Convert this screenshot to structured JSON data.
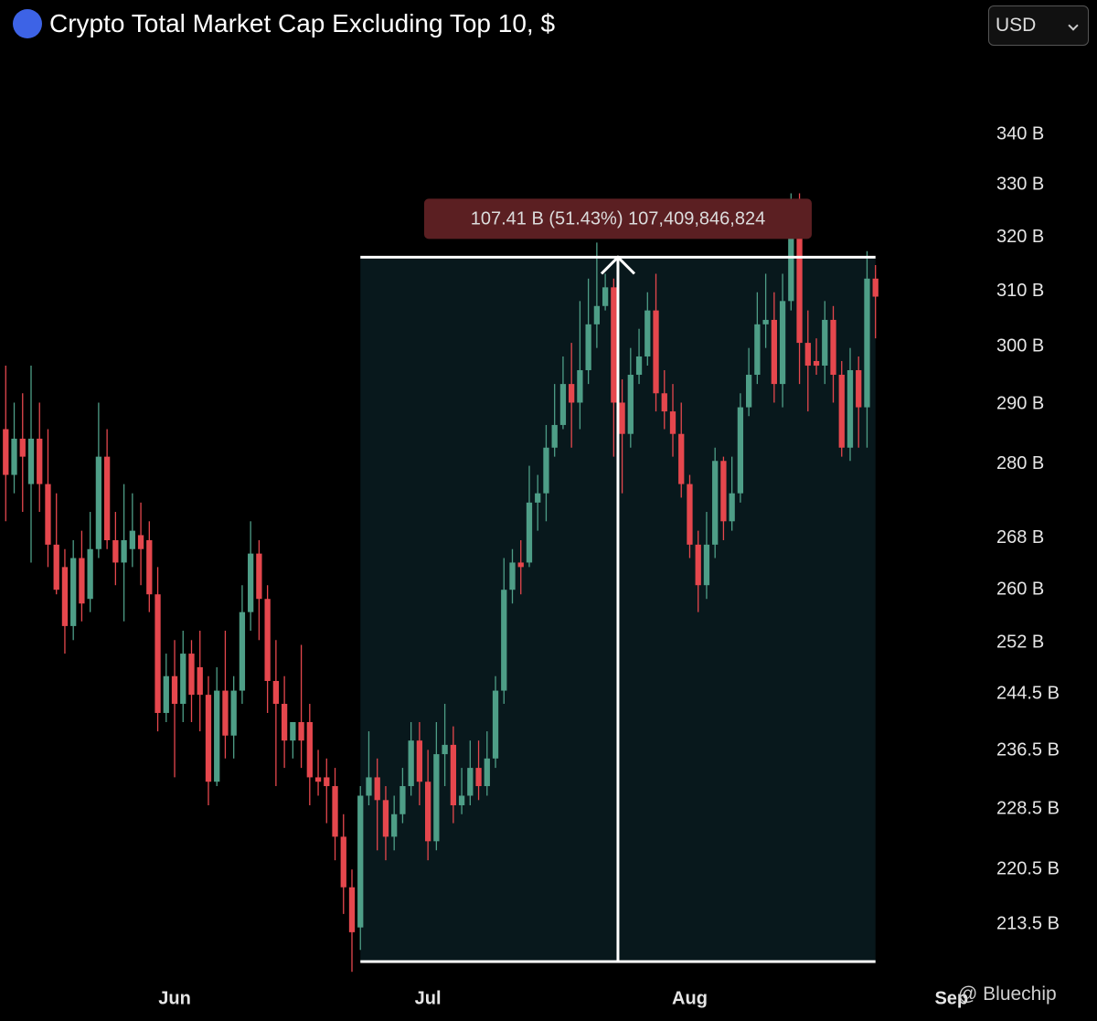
{
  "chart_data": {
    "type": "candlestick",
    "title": "Crypto Total Market Cap Excluding Top 10, $",
    "currency": "USD",
    "watermark": "@ Bluechip",
    "up_color": "#4e9e87",
    "down_color": "#e5474d",
    "log_scale": true,
    "ylim": [
      207.4,
      356.3
    ],
    "yticks": [
      {
        "value": 340,
        "label": "340 B"
      },
      {
        "value": 330,
        "label": "330 B"
      },
      {
        "value": 320,
        "label": "320 B"
      },
      {
        "value": 310,
        "label": "310 B"
      },
      {
        "value": 300,
        "label": "300 B"
      },
      {
        "value": 290,
        "label": "290 B"
      },
      {
        "value": 280,
        "label": "280 B"
      },
      {
        "value": 268,
        "label": "268 B"
      },
      {
        "value": 260,
        "label": "260 B"
      },
      {
        "value": 252,
        "label": "252 B"
      },
      {
        "value": 244.5,
        "label": "244.5 B"
      },
      {
        "value": 236.5,
        "label": "236.5 B"
      },
      {
        "value": 228.5,
        "label": "228.5 B"
      },
      {
        "value": 220.5,
        "label": "220.5 B"
      },
      {
        "value": 213.5,
        "label": "213.5 B"
      }
    ],
    "xlim": [
      -0.68,
      115.7
    ],
    "xticks": [
      {
        "value": 20,
        "label": "Jun"
      },
      {
        "value": 50,
        "label": "Jul"
      },
      {
        "value": 81,
        "label": "Aug"
      },
      {
        "value": 112,
        "label": "Sep"
      }
    ],
    "measure": {
      "start": 42,
      "end": 103,
      "low": 208.85,
      "high": 316.26,
      "label": "107.41 B (51.43%) 107,409,846,824"
    },
    "candles": [
      [
        285.8,
        296.7,
        270.7,
        278.2
      ],
      [
        278.2,
        290.3,
        275.2,
        284.2
      ],
      [
        284.2,
        291.9,
        272.2,
        281.2
      ],
      [
        276.7,
        296.7,
        264.2,
        284.2
      ],
      [
        284.2,
        290.3,
        272.2,
        276.7
      ],
      [
        276.7,
        285.8,
        263.5,
        267
      ],
      [
        267,
        275.2,
        259.3,
        260
      ],
      [
        263.5,
        266.3,
        250.4,
        254.5
      ],
      [
        254.5,
        267.7,
        252.4,
        264.9
      ],
      [
        264.9,
        269.2,
        255.2,
        257.9
      ],
      [
        258.6,
        272.2,
        256.6,
        266.3
      ],
      [
        266.3,
        290.3,
        264.9,
        281.2
      ],
      [
        281.2,
        285.8,
        266.3,
        267.7
      ],
      [
        267.7,
        272.2,
        260.7,
        264.2
      ],
      [
        264.2,
        276.7,
        255.2,
        267.7
      ],
      [
        266.3,
        275.2,
        263.5,
        269.2
      ],
      [
        268.5,
        273.7,
        260.7,
        266.3
      ],
      [
        267.7,
        270.7,
        256.6,
        259.3
      ],
      [
        259.3,
        263.5,
        239.2,
        241.8
      ],
      [
        241.8,
        250.4,
        240.5,
        247.1
      ],
      [
        247.1,
        252.4,
        232.8,
        243.1
      ],
      [
        243.1,
        253.8,
        240.5,
        250.4
      ],
      [
        250.4,
        252.4,
        240.5,
        244.4
      ],
      [
        248.4,
        253.8,
        239.2,
        244.4
      ],
      [
        244.4,
        247.1,
        229,
        232.2
      ],
      [
        232.2,
        248.4,
        231.6,
        245
      ],
      [
        245,
        253.8,
        235.4,
        238.6
      ],
      [
        238.6,
        247.1,
        235.4,
        245
      ],
      [
        245,
        260.7,
        243.1,
        256.6
      ],
      [
        256.6,
        270.7,
        253.8,
        265.6
      ],
      [
        265.6,
        267.7,
        252.4,
        258.6
      ],
      [
        258.6,
        260.7,
        241.8,
        246.4
      ],
      [
        246.4,
        252.4,
        231.6,
        243.1
      ],
      [
        243.1,
        247.1,
        234.1,
        237.9
      ],
      [
        237.9,
        240.5,
        235.4,
        240.5
      ],
      [
        240.5,
        251.7,
        234.1,
        237.9
      ],
      [
        240.5,
        243.1,
        229,
        232.8
      ],
      [
        232.8,
        236.6,
        230.3,
        232.2
      ],
      [
        232.8,
        235.4,
        226.6,
        231.6
      ],
      [
        231.6,
        234.1,
        221.7,
        224.8
      ],
      [
        224.8,
        227.8,
        214.8,
        218.2
      ],
      [
        218.2,
        220.5,
        207.6,
        212.5
      ],
      [
        213.1,
        231.6,
        210.3,
        230.3
      ],
      [
        230.3,
        239.2,
        229,
        232.8
      ],
      [
        232.8,
        235.4,
        223,
        229.7
      ],
      [
        229.7,
        231.6,
        221.7,
        224.8
      ],
      [
        224.8,
        230.3,
        223,
        227.8
      ],
      [
        227.8,
        234.1,
        226.6,
        231.6
      ],
      [
        231.6,
        240.5,
        230.3,
        237.9
      ],
      [
        237.9,
        240.5,
        229,
        232.2
      ],
      [
        232.2,
        236.6,
        221.7,
        224.2
      ],
      [
        224.2,
        240.5,
        223,
        236
      ],
      [
        236,
        243.1,
        231.6,
        237.3
      ],
      [
        237.3,
        239.9,
        226.6,
        229
      ],
      [
        229,
        234.1,
        227.8,
        230.3
      ],
      [
        230.3,
        237.9,
        229,
        234.1
      ],
      [
        234.1,
        237.9,
        229.7,
        231.6
      ],
      [
        231.6,
        239.2,
        230.3,
        235.4
      ],
      [
        235.4,
        247.1,
        234.1,
        245
      ],
      [
        245,
        264.9,
        243.1,
        260
      ],
      [
        260,
        266.3,
        257.9,
        264.2
      ],
      [
        264.2,
        267.7,
        259.3,
        263.5
      ],
      [
        264.2,
        279.7,
        263.5,
        273.7
      ],
      [
        273.7,
        278.2,
        269.2,
        275.2
      ],
      [
        275.2,
        286.5,
        270.7,
        282.7
      ],
      [
        282.7,
        293.5,
        281.2,
        286.5
      ],
      [
        286.5,
        298.3,
        285.8,
        293.5
      ],
      [
        293.5,
        300.7,
        282.7,
        290.3
      ],
      [
        290.3,
        308.2,
        285.8,
        295.9
      ],
      [
        295.9,
        312.3,
        293.5,
        304
      ],
      [
        304,
        319,
        299.8,
        307.3
      ],
      [
        307.3,
        313.2,
        306.5,
        310.7
      ],
      [
        310.7,
        312.3,
        281.2,
        290.3
      ],
      [
        290.3,
        294.3,
        275.2,
        285
      ],
      [
        285,
        299.8,
        282.7,
        295.1
      ],
      [
        295.1,
        303.2,
        293.5,
        298.3
      ],
      [
        298.3,
        309.8,
        296.7,
        306.5
      ],
      [
        306.5,
        313.2,
        288.8,
        291.9
      ],
      [
        291.9,
        295.9,
        285.8,
        288.8
      ],
      [
        288.8,
        293.5,
        281.2,
        285
      ],
      [
        285,
        290.3,
        274.5,
        276.7
      ],
      [
        276.7,
        278.2,
        264.9,
        267
      ],
      [
        267,
        269.2,
        256.6,
        260.7
      ],
      [
        260.7,
        272.2,
        258.6,
        267
      ],
      [
        267,
        282.7,
        264.9,
        280.5
      ],
      [
        280.5,
        281.2,
        267.7,
        270.7
      ],
      [
        270.7,
        281.2,
        269.2,
        275.2
      ],
      [
        275.2,
        291.9,
        273.7,
        289.5
      ],
      [
        289.5,
        299.8,
        288,
        295.1
      ],
      [
        295.1,
        309.8,
        293.5,
        304
      ],
      [
        304,
        313.2,
        299.8,
        304.8
      ],
      [
        304.8,
        309.8,
        290.3,
        293.5
      ],
      [
        293.5,
        313.2,
        289.5,
        308.2
      ],
      [
        308.2,
        328.4,
        306.5,
        319.8
      ],
      [
        319.8,
        328.4,
        293.5,
        300.7
      ],
      [
        300.7,
        306.5,
        288.8,
        296.7
      ],
      [
        297.5,
        301.5,
        295.1,
        296.7
      ],
      [
        296.7,
        308.2,
        293.5,
        304.8
      ],
      [
        304.8,
        307.3,
        290.3,
        295.1
      ],
      [
        295.1,
        297.5,
        281.2,
        282.7
      ],
      [
        282.7,
        299.8,
        280.5,
        295.9
      ],
      [
        295.9,
        298.3,
        282.7,
        289.5
      ],
      [
        289.5,
        317.4,
        282.7,
        312.3
      ],
      [
        312.3,
        314.8,
        301.5,
        309
      ]
    ]
  }
}
